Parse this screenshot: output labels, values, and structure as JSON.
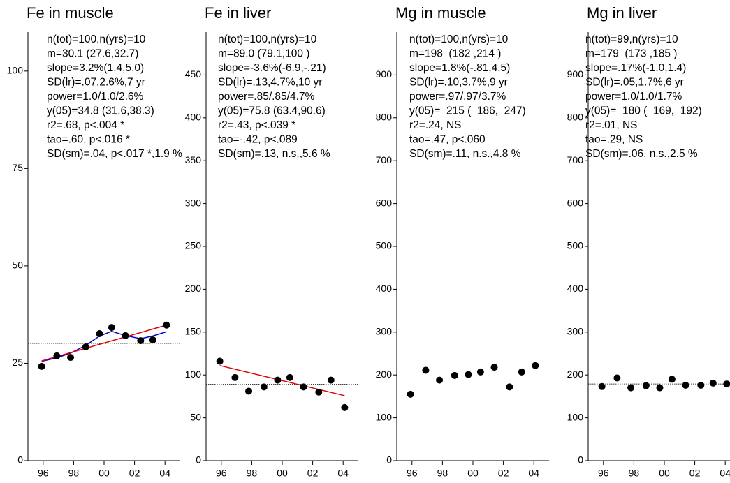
{
  "chart_data": [
    {
      "type": "scatter",
      "title": "Fe in muscle",
      "annotations": [
        "n(tot)=100,n(yrs)=10",
        "m=30.1 (27.6,32.7)",
        "slope=3.2%(1.4,5.0)",
        "SD(lr)=.07,2.6%,7 yr",
        "power=1.0/1.0/2.6%",
        "y(05)=34.8 (31.6,38.3)",
        "r2=.68, p<.004 *",
        "tao=.60, p<.016 *",
        "SD(sm)=.04, p<.017 *,1.9 %"
      ],
      "x": [
        1995.9,
        1996.9,
        1997.8,
        1998.8,
        1999.7,
        2000.5,
        2001.4,
        2002.4,
        2003.2,
        2004.1
      ],
      "values": [
        24.2,
        26.9,
        26.5,
        29.2,
        32.6,
        34.2,
        32.1,
        30.8,
        31.0,
        34.8
      ],
      "color": "#000000",
      "mean_line": 30.1,
      "trend": {
        "x": [
          1995.9,
          2004.1
        ],
        "values": [
          25.6,
          34.8
        ],
        "color": "#e00000"
      },
      "smooth": {
        "x": [
          1995.9,
          1996.9,
          1997.8,
          1998.8,
          1999.7,
          2000.5,
          2001.4,
          2002.4,
          2003.2,
          2004.1
        ],
        "values": [
          25.5,
          26.4,
          27.6,
          29.6,
          32.0,
          33.2,
          32.1,
          31.3,
          32.0,
          33.1
        ],
        "color": "#0000d0"
      },
      "xlim": [
        1995,
        2005
      ],
      "xticks": [
        {
          "value": 1996,
          "label": "96"
        },
        {
          "value": 1998,
          "label": "98"
        },
        {
          "value": 2000,
          "label": "00"
        },
        {
          "value": 2002,
          "label": "02"
        },
        {
          "value": 2004,
          "label": "04"
        }
      ],
      "ylim": [
        0,
        110
      ],
      "yticks": [
        0,
        25,
        50,
        75,
        100
      ]
    },
    {
      "type": "scatter",
      "title": "Fe in liver",
      "annotations": [
        "n(tot)=100,n(yrs)=10",
        "m=89.0 (79.1,100 )",
        "slope=-3.6%(-6.9,-.21)",
        "SD(lr)=.13,4.7%,10 yr",
        "power=.85/.85/4.7%",
        "y(05)=75.8 (63.4,90.6)",
        "r2=.43, p<.039 *",
        "tao=-.42, p<.089",
        "SD(sm)=.13, n.s.,5.6 %"
      ],
      "x": [
        1995.9,
        1996.9,
        1997.8,
        1998.8,
        1999.7,
        2000.5,
        2001.4,
        2002.4,
        2003.2,
        2004.1
      ],
      "values": [
        116,
        97,
        81,
        86,
        94,
        97,
        86,
        80,
        94,
        62
      ],
      "color": "#000000",
      "mean_line": 89.0,
      "trend": {
        "x": [
          1995.9,
          2004.1
        ],
        "values": [
          111,
          75.8
        ],
        "color": "#e00000"
      },
      "xlim": [
        1995,
        2005
      ],
      "xticks": [
        {
          "value": 1996,
          "label": "96"
        },
        {
          "value": 1998,
          "label": "98"
        },
        {
          "value": 2000,
          "label": "00"
        },
        {
          "value": 2002,
          "label": "02"
        },
        {
          "value": 2004,
          "label": "04"
        }
      ],
      "ylim": [
        0,
        500
      ],
      "yticks": [
        0,
        50,
        100,
        150,
        200,
        250,
        300,
        350,
        400,
        450
      ]
    },
    {
      "type": "scatter",
      "title": "Mg in muscle",
      "annotations": [
        "n(tot)=100,n(yrs)=10",
        "m=198  (182 ,214 )",
        "slope=1.8%(-.81,4.5)",
        "SD(lr)=.10,3.7%,9 yr",
        "power=.97/.97/3.7%",
        "y(05)=  215 (  186,  247)",
        "r2=.24, NS",
        "tao=.47, p<.060",
        "SD(sm)=.11, n.s.,4.8 %"
      ],
      "x": [
        1995.9,
        1996.9,
        1997.8,
        1998.8,
        1999.7,
        2000.5,
        2001.4,
        2002.4,
        2003.2,
        2004.1
      ],
      "values": [
        155,
        211,
        188,
        199,
        201,
        207,
        218,
        172,
        207,
        222
      ],
      "color": "#000000",
      "mean_line": 198,
      "xlim": [
        1995,
        2005
      ],
      "xticks": [
        {
          "value": 1996,
          "label": "96"
        },
        {
          "value": 1998,
          "label": "98"
        },
        {
          "value": 2000,
          "label": "00"
        },
        {
          "value": 2002,
          "label": "02"
        },
        {
          "value": 2004,
          "label": "04"
        }
      ],
      "ylim": [
        0,
        1000
      ],
      "yticks": [
        0,
        100,
        200,
        300,
        400,
        500,
        600,
        700,
        800,
        900
      ]
    },
    {
      "type": "scatter",
      "title": "Mg in liver",
      "annotations": [
        "n(tot)=99,n(yrs)=10",
        "m=179  (173 ,185 )",
        "slope=.17%(-1.0,1.4)",
        "SD(lr)=.05,1.7%,6 yr",
        "power=1.0/1.0/1.7%",
        "y(05)=  180 (  169,  192)",
        "r2=.01, NS",
        "tao=.29, NS",
        "SD(sm)=.06, n.s.,2.5 %"
      ],
      "x": [
        1995.9,
        1996.9,
        1997.8,
        1998.8,
        1999.7,
        2000.5,
        2001.4,
        2002.4,
        2003.2,
        2004.1
      ],
      "values": [
        173,
        193,
        170,
        175,
        170,
        190,
        176,
        176,
        181,
        179
      ],
      "color": "#000000",
      "mean_line": 179,
      "xlim": [
        1995,
        2005
      ],
      "xticks": [
        {
          "value": 1996,
          "label": "96"
        },
        {
          "value": 1998,
          "label": "98"
        },
        {
          "value": 2000,
          "label": "00"
        },
        {
          "value": 2002,
          "label": "02"
        },
        {
          "value": 2004,
          "label": "04"
        }
      ],
      "ylim": [
        0,
        1000
      ],
      "yticks": [
        0,
        100,
        200,
        300,
        400,
        500,
        600,
        700,
        800,
        900
      ]
    }
  ]
}
